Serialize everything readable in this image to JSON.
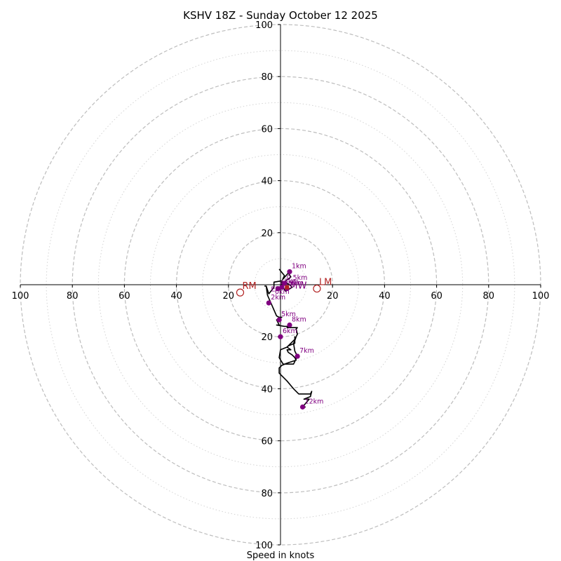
{
  "chart_data": {
    "type": "hodograph",
    "title": "KSHV 18Z - Sunday October 12 2025",
    "xlabel": "Speed in knots",
    "ylabel": "",
    "range": [
      -100,
      100
    ],
    "ring_major": [
      20,
      40,
      60,
      80,
      100
    ],
    "ring_minor": [
      10,
      30,
      50,
      70,
      90
    ],
    "tick_labels": {
      "x": [
        "100",
        "80",
        "60",
        "40",
        "20",
        "20",
        "40",
        "60",
        "80",
        "100"
      ],
      "y": [
        "100",
        "80",
        "60",
        "40",
        "20",
        "20",
        "40",
        "60",
        "80",
        "100"
      ]
    },
    "tick_values": {
      "x": [
        -100,
        -80,
        -60,
        -40,
        -20,
        20,
        40,
        60,
        80,
        100
      ],
      "y": [
        100,
        80,
        60,
        40,
        20,
        -20,
        -40,
        -60,
        -80,
        -100
      ]
    },
    "trace": {
      "u": [
        -0.5,
        1.5,
        0.8,
        3.0,
        4.0,
        1.5,
        3.5,
        4.5,
        2.0,
        0.5,
        0.5,
        -2.5,
        -2.5,
        -4.5,
        -5.5,
        -6,
        -5.5,
        -5.0,
        -1.5,
        -0.5,
        0.5,
        -0.5,
        -1.5,
        -1.0,
        -0.5,
        -1.5,
        1.5,
        3.5,
        2.5,
        6.5,
        6.0,
        6.5,
        6.0,
        5.5,
        5.0,
        5.5,
        6.5,
        5.0,
        1.0,
        -0.5,
        0.0,
        2.5,
        3.0,
        5.5,
        5.5,
        5.5,
        4.0,
        2.5,
        4.0,
        2.5,
        3.0,
        4.5,
        5.5,
        6.0,
        3.0,
        0.5,
        -0.5,
        -0.5,
        -0.5,
        2.5,
        5.0,
        7.0,
        8.5,
        11.5,
        12.0,
        11.5,
        9.0,
        11.0,
        8.5,
        9.5,
        8.5
      ],
      "v": [
        6.0,
        3.5,
        2.0,
        4.5,
        3.0,
        1.0,
        0.0,
        -1.0,
        -2.5,
        -0.5,
        1.5,
        1.0,
        -1.0,
        -3.5,
        -0.5,
        -0.5,
        -0.5,
        -4.0,
        -12.0,
        -12.5,
        -12.5,
        -13.0,
        -13.5,
        -14.5,
        -15.5,
        -15.5,
        -16.0,
        -16.0,
        -16.5,
        -16.5,
        -17.0,
        -19.0,
        -20.0,
        -21.5,
        -22.5,
        -25.5,
        -27.5,
        -30.5,
        -30.5,
        -28.0,
        -25.0,
        -24.0,
        -23.5,
        -22.5,
        -20.0,
        -21.0,
        -22.5,
        -24.0,
        -25.0,
        -25.0,
        -26.0,
        -27.0,
        -28.0,
        -29.0,
        -30.0,
        -31.0,
        -32.0,
        -33.0,
        -34.0,
        -37.0,
        -40.0,
        -42.0,
        -42.0,
        -42.0,
        -41.0,
        -43.0,
        -44.0,
        -44.0,
        -47.0,
        -47.0,
        -46.5
      ]
    },
    "height_markers": [
      {
        "label": "1km",
        "u": 3.5,
        "v": 5.0
      },
      {
        "label": "2km",
        "u": -4.5,
        "v": -7.0
      },
      {
        "label": "5km",
        "u": -0.5,
        "v": -13.5
      },
      {
        "label": "8km",
        "u": 3.5,
        "v": -15.5
      },
      {
        "label": "6km",
        "u": 0.0,
        "v": -20.0
      },
      {
        "label": "7km",
        "u": 6.5,
        "v": -27.5
      },
      {
        "label": "12km",
        "u": 8.5,
        "v": -47.0
      },
      {
        "label": "0.5km",
        "u": 1.5,
        "v": 0.5
      },
      {
        "label": "3km",
        "u": 0.5,
        "v": -1.0
      },
      {
        "label": "4km",
        "u": -1.0,
        "v": -1.5
      },
      {
        "label": "9km",
        "u": 2.5,
        "v": -1.5
      }
    ],
    "storm_motion": [
      {
        "label": "RM",
        "u": -15.5,
        "v": -3.0
      },
      {
        "label": "LM",
        "u": 14.0,
        "v": -1.5
      }
    ],
    "mean_wind": {
      "label": "MW",
      "u": 2.5,
      "v": -1.0
    },
    "extra_labels": [
      {
        "label": "EF",
        "u": -1.5,
        "v": -2.0
      },
      {
        "label": "0km",
        "u": 0.0,
        "v": -3.0
      }
    ],
    "colors": {
      "trace": "#000000",
      "height_marker": "#800080",
      "storm_motion": "#b22222",
      "ring_major": "#bdbdbd",
      "ring_minor": "#d3d3d3"
    }
  }
}
